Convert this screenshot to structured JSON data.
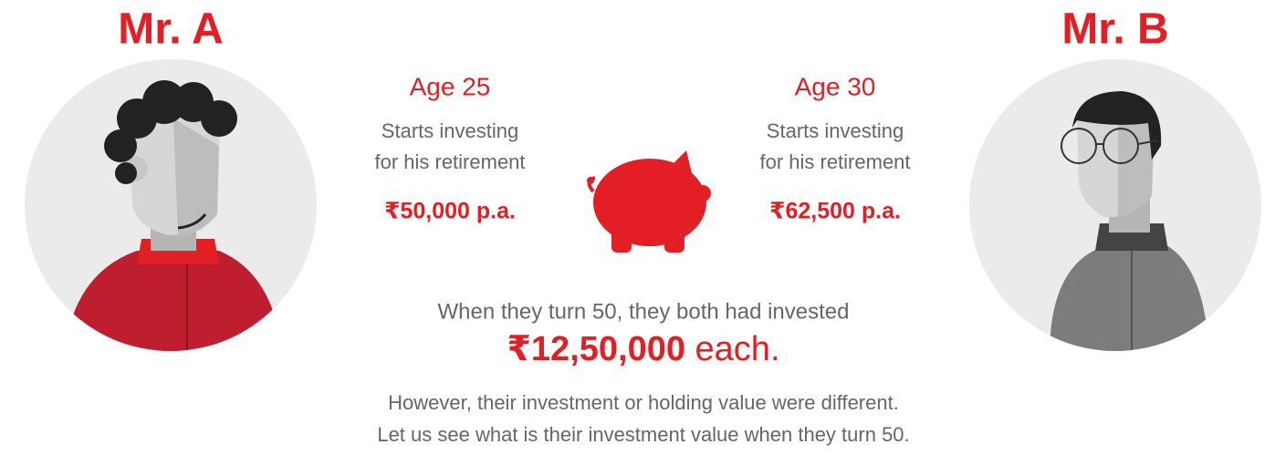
{
  "left": {
    "name": "Mr. A",
    "age": "Age 25",
    "description": [
      "Starts investing",
      "for his retirement"
    ],
    "amount": "₹50,000 p.a."
  },
  "right": {
    "name": "Mr. B",
    "age": "Age 30",
    "description": [
      "Starts investing",
      "for his retirement"
    ],
    "amount": "₹62,500 p.a."
  },
  "summary": {
    "text": "When they turn 50, they both had invested",
    "amount": "₹12,50,000",
    "suffix": " each."
  },
  "footer": [
    "However, their investment or holding value were different.",
    "Let us see what is their investment value when they turn 50."
  ]
}
